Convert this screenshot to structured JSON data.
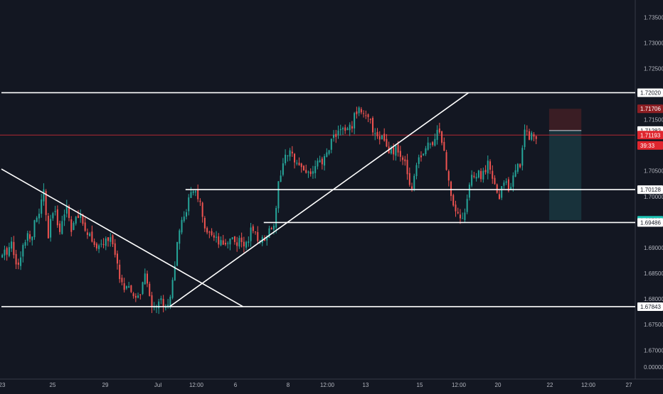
{
  "colors": {
    "background": "#131722",
    "up": "#26a69a",
    "down": "#ef5350",
    "line": "#ffffff",
    "axis_text": "#b2b5be",
    "current_price_line": "#b22833",
    "stop_zone": "#3a1d24",
    "target_zone": "#18323b"
  },
  "chart_data": {
    "type": "candlestick",
    "symbol_note": "",
    "y_axis": {
      "ylim": [
        1.6647,
        1.7383
      ],
      "ticks": [
        "1.73500",
        "1.73000",
        "1.72500",
        "1.71500",
        "1.70500",
        "1.70000",
        "1.69000",
        "1.68500",
        "1.68000",
        "1.67500",
        "1.67000"
      ],
      "tick_values": [
        1.735,
        1.73,
        1.725,
        1.715,
        1.705,
        1.7,
        1.69,
        1.685,
        1.68,
        1.675,
        1.67
      ],
      "bottom_label": "0.00000"
    },
    "x_axis": {
      "ticks": [
        "23",
        "25",
        "29",
        "Jul",
        "12:00",
        "6",
        "8",
        "12:00",
        "13",
        "15",
        "12:00",
        "20",
        "22",
        "12:00",
        "27"
      ]
    },
    "price_labels": [
      {
        "text": "1.72020",
        "value": 1.7202,
        "style": "plain"
      },
      {
        "text": "1.71706",
        "value": 1.71706,
        "style": "stop"
      },
      {
        "text": "1.71282",
        "value": 1.71282,
        "style": "plain"
      },
      {
        "text": "1.71193",
        "value": 1.71193,
        "style": "current"
      },
      {
        "text": "39:33",
        "value": 1.7099,
        "style": "current"
      },
      {
        "text": "1.70128",
        "value": 1.70128,
        "style": "plain"
      },
      {
        "text": "1.69530",
        "value": 1.6953,
        "style": "target"
      },
      {
        "text": "1.69486",
        "value": 1.69486,
        "style": "plain"
      },
      {
        "text": "1.67843",
        "value": 1.67843,
        "style": "plain"
      }
    ],
    "horizontal_levels": [
      {
        "name": "resistance-top",
        "value": 1.7202,
        "x_from_index": 0,
        "to": "axis"
      },
      {
        "name": "mid-support",
        "value": 1.70128,
        "x_from_index": 80,
        "to": "axis"
      },
      {
        "name": "lower-support",
        "value": 1.69486,
        "x_from_index": 114,
        "to": "axis"
      },
      {
        "name": "base-support",
        "value": 1.67843,
        "x_from_index": 0,
        "to": "axis"
      }
    ],
    "trend_lines": [
      {
        "name": "descending-trendline",
        "from": {
          "i": 0,
          "v": 1.7053
        },
        "to": {
          "i": 105,
          "v": 1.67843
        }
      },
      {
        "name": "ascending-trendline",
        "from": {
          "i": 73,
          "v": 1.6784
        },
        "to": {
          "i": 203,
          "v": 1.7202
        }
      }
    ],
    "position": {
      "entry": 1.71282,
      "stop": 1.71706,
      "target": 1.6953,
      "start_index": 238,
      "end_index": 252
    },
    "current_price": 1.71193,
    "candles": {
      "count": 233,
      "close_path": [
        [
          0,
          1.688
        ],
        [
          4,
          1.691
        ],
        [
          7,
          1.686
        ],
        [
          10,
          1.692
        ],
        [
          13,
          1.693
        ],
        [
          16,
          1.697
        ],
        [
          18,
          1.7006
        ],
        [
          20,
          1.692
        ],
        [
          22,
          1.697
        ],
        [
          25,
          1.694
        ],
        [
          28,
          1.698
        ],
        [
          30,
          1.694
        ],
        [
          33,
          1.696
        ],
        [
          36,
          1.694
        ],
        [
          39,
          1.692
        ],
        [
          41,
          1.689
        ],
        [
          44,
          1.691
        ],
        [
          47,
          1.692
        ],
        [
          50,
          1.686
        ],
        [
          53,
          1.682
        ],
        [
          56,
          1.681
        ],
        [
          59,
          1.68
        ],
        [
          62,
          1.684
        ],
        [
          65,
          1.679
        ],
        [
          67,
          1.679
        ],
        [
          70,
          1.6795
        ],
        [
          72,
          1.6785
        ],
        [
          74,
          1.684
        ],
        [
          76,
          1.69
        ],
        [
          78,
          1.695
        ],
        [
          81,
          1.699
        ],
        [
          84,
          1.7015
        ],
        [
          86,
          1.698
        ],
        [
          88,
          1.693
        ],
        [
          90,
          1.692
        ],
        [
          93,
          1.691
        ],
        [
          96,
          1.69
        ],
        [
          99,
          1.692
        ],
        [
          102,
          1.691
        ],
        [
          105,
          1.6905
        ],
        [
          108,
          1.693
        ],
        [
          110,
          1.692
        ],
        [
          113,
          1.6915
        ],
        [
          116,
          1.6935
        ],
        [
          118,
          1.695
        ],
        [
          120,
          1.702
        ],
        [
          122,
          1.707
        ],
        [
          125,
          1.708
        ],
        [
          128,
          1.7075
        ],
        [
          131,
          1.705
        ],
        [
          134,
          1.7045
        ],
        [
          137,
          1.706
        ],
        [
          140,
          1.707
        ],
        [
          143,
          1.711
        ],
        [
          146,
          1.713
        ],
        [
          149,
          1.7125
        ],
        [
          152,
          1.714
        ],
        [
          155,
          1.718
        ],
        [
          157,
          1.716
        ],
        [
          160,
          1.714
        ],
        [
          163,
          1.712
        ],
        [
          166,
          1.711
        ],
        [
          168,
          1.708
        ],
        [
          171,
          1.709
        ],
        [
          174,
          1.707
        ],
        [
          176,
          1.705
        ],
        [
          178,
          1.7015
        ],
        [
          180,
          1.707
        ],
        [
          183,
          1.709
        ],
        [
          186,
          1.71
        ],
        [
          189,
          1.713
        ],
        [
          191,
          1.711
        ],
        [
          193,
          1.7055
        ],
        [
          195,
          1.7005
        ],
        [
          197,
          1.698
        ],
        [
          199,
          1.6955
        ],
        [
          201,
          1.697
        ],
        [
          203,
          1.7025
        ],
        [
          206,
          1.7045
        ],
        [
          208,
          1.7035
        ],
        [
          211,
          1.706
        ],
        [
          214,
          1.702
        ],
        [
          216,
          1.6995
        ],
        [
          218,
          1.703
        ],
        [
          220,
          1.702
        ],
        [
          223,
          1.7045
        ],
        [
          225,
          1.7065
        ],
        [
          227,
          1.713
        ],
        [
          229,
          1.712
        ],
        [
          232,
          1.7119
        ]
      ],
      "start_index": 0
    }
  }
}
